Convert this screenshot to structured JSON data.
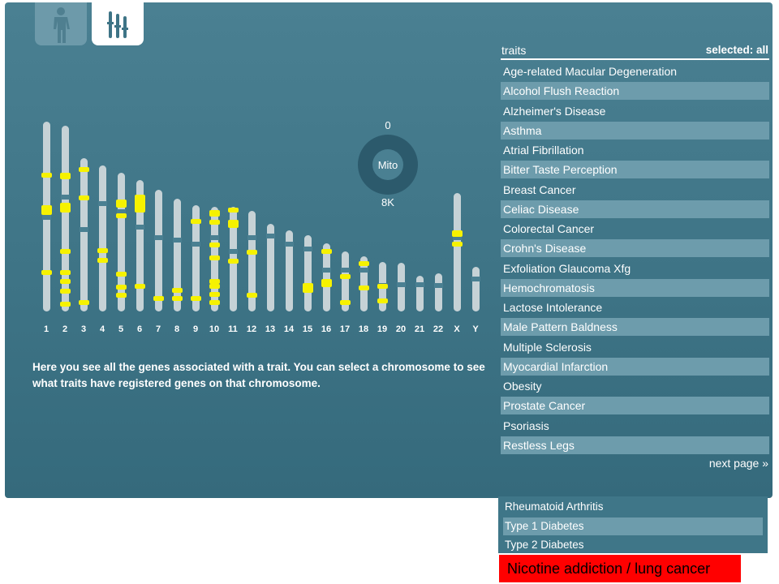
{
  "tabs": [
    {
      "icon": "human-body-icon",
      "active": false
    },
    {
      "icon": "chromosome-bars-icon",
      "active": true
    }
  ],
  "chromosomes": {
    "labels": [
      "1",
      "2",
      "3",
      "4",
      "5",
      "6",
      "7",
      "8",
      "9",
      "10",
      "11",
      "12",
      "13",
      "14",
      "15",
      "16",
      "17",
      "18",
      "19",
      "20",
      "21",
      "22",
      "X",
      "Y"
    ],
    "band_color": "#f6f200"
  },
  "mito": {
    "label": "Mito",
    "top_value": "0",
    "bottom_value": "8K"
  },
  "instructions": "Here you see all the genes associated with a trait. You can select a chromosome to see what traits have registered genes on that chromosome.",
  "traits": {
    "header": "traits",
    "selected_label": "selected: all",
    "items": [
      "Age-related Macular Degeneration",
      "Alcohol Flush Reaction",
      "Alzheimer's Disease",
      "Asthma",
      "Atrial Fibrillation",
      "Bitter Taste Perception",
      "Breast Cancer",
      "Celiac Disease",
      "Colorectal Cancer",
      "Crohn's Disease",
      "Exfoliation Glaucoma Xfg",
      "Hemochromatosis",
      "Lactose Intolerance",
      "Male Pattern Baldness",
      "Multiple Sclerosis",
      "Myocardial Infarction",
      "Obesity",
      "Prostate Cancer",
      "Psoriasis",
      "Restless Legs"
    ],
    "next_page": "next page »"
  },
  "extra_traits": [
    "Rheumatoid Arthritis",
    "Type 1 Diabetes",
    "Type 2 Diabetes"
  ],
  "annotation": "Nicotine addiction / lung cancer",
  "colors": {
    "panel": "#4a8092",
    "row_alt": "#6d9cac",
    "annotation_bg": "#ff0000"
  }
}
